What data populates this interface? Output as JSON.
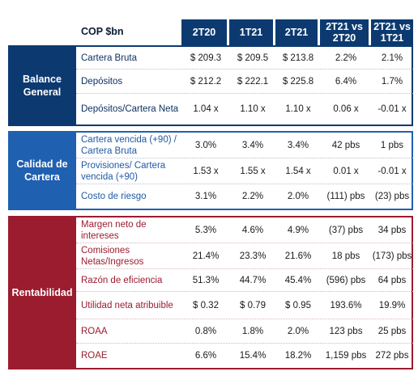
{
  "header": {
    "currency": "COP $bn",
    "columns": [
      "2T20",
      "1T21",
      "2T21",
      "2T21 vs\n2T20",
      "2T21 vs\n1T21"
    ]
  },
  "sections": {
    "balance": {
      "label": "Balance\nGeneral",
      "rows": [
        {
          "label": "Cartera Bruta",
          "values": [
            "$ 209.3",
            "$ 209.5",
            "$ 213.8",
            "2.2%",
            "2.1%"
          ]
        },
        {
          "label": "Depósitos",
          "values": [
            "$ 212.2",
            "$ 222.1",
            "$ 225.8",
            "6.4%",
            "1.7%"
          ]
        },
        {
          "label": "Depósitos/Cartera Neta",
          "values": [
            "1.04 x",
            "1.10 x",
            "1.10 x",
            "0.06 x",
            "-0.01 x"
          ]
        }
      ]
    },
    "calidad": {
      "label": "Calidad de\nCartera",
      "rows": [
        {
          "label": "Cartera vencida (+90) / Cartera Bruta",
          "values": [
            "3.0%",
            "3.4%",
            "3.4%",
            "42 pbs",
            "1 pbs"
          ]
        },
        {
          "label": "Provisiones/ Cartera vencida (+90)",
          "values": [
            "1.53 x",
            "1.55 x",
            "1.54 x",
            "0.01 x",
            "-0.01 x"
          ]
        },
        {
          "label": "Costo de riesgo",
          "values": [
            "3.1%",
            "2.2%",
            "2.0%",
            "(111) pbs",
            "(23) pbs"
          ]
        }
      ]
    },
    "rentabilidad": {
      "label": "Rentabilidad",
      "rows": [
        {
          "label": "Margen neto de intereses",
          "values": [
            "5.3%",
            "4.6%",
            "4.9%",
            "(37) pbs",
            "34 pbs"
          ]
        },
        {
          "label": "Comisiones Netas/Ingresos",
          "values": [
            "21.4%",
            "23.3%",
            "21.6%",
            "18 pbs",
            "(173) pbs"
          ]
        },
        {
          "label": "Razón de eficiencia",
          "values": [
            "51.3%",
            "44.7%",
            "45.4%",
            "(596) pbs",
            "64 pbs"
          ]
        },
        {
          "label": "Utilidad neta atribuible",
          "values": [
            "$ 0.32",
            "$ 0.79",
            "$ 0.95",
            "193.6%",
            "19.9%"
          ]
        },
        {
          "label": "ROAA",
          "values": [
            "0.8%",
            "1.8%",
            "2.0%",
            "123 pbs",
            "25 pbs"
          ]
        },
        {
          "label": "ROAE",
          "values": [
            "6.6%",
            "15.4%",
            "18.2%",
            "1,159 pbs",
            "272 pbs"
          ]
        }
      ]
    }
  },
  "colors": {
    "navy": "#0c3a70",
    "blue": "#2060b0",
    "red": "#9b1c2e"
  }
}
